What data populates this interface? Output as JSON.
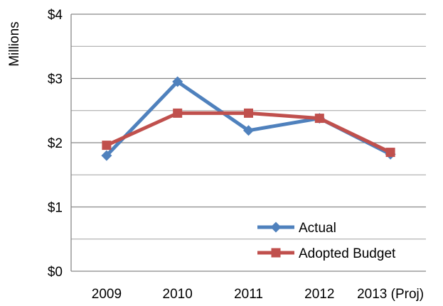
{
  "chart_data": {
    "type": "line",
    "title": "",
    "xlabel": "",
    "ylabel": "Millions",
    "categories": [
      "2009",
      "2010",
      "2011",
      "2012",
      "2013 (Proj)"
    ],
    "ylim": [
      0,
      4
    ],
    "y_ticks": [
      0,
      1,
      2,
      3,
      4
    ],
    "y_tick_labels": [
      "$0",
      "$1",
      "$2",
      "$3",
      "$4"
    ],
    "grid": "horizontal major and minor",
    "legend": "inside lower-right",
    "series": [
      {
        "name": "Actual",
        "color": "#4F81BD",
        "marker": "diamond",
        "values": [
          1.8,
          2.95,
          2.19,
          2.38,
          1.82
        ]
      },
      {
        "name": "Adopted Budget",
        "color": "#C0504D",
        "marker": "square",
        "values": [
          1.96,
          2.46,
          2.46,
          2.38,
          1.85
        ]
      }
    ],
    "colors": {
      "grid": "#888888",
      "axis": "#888888",
      "background": "#ffffff"
    }
  }
}
